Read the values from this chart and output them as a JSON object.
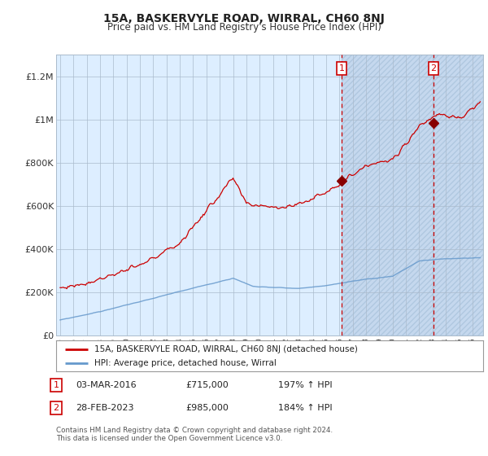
{
  "title": "15A, BASKERVYLE ROAD, WIRRAL, CH60 8NJ",
  "subtitle": "Price paid vs. HM Land Registry's House Price Index (HPI)",
  "legend_line1": "15A, BASKERVYLE ROAD, WIRRAL, CH60 8NJ (detached house)",
  "legend_line2": "HPI: Average price, detached house, Wirral",
  "annotation1_date": "03-MAR-2016",
  "annotation1_price": 715000,
  "annotation1_price_str": "£715,000",
  "annotation1_pct": "197% ↑ HPI",
  "annotation2_date": "28-FEB-2023",
  "annotation2_price": 985000,
  "annotation2_price_str": "£985,000",
  "annotation2_pct": "184% ↑ HPI",
  "footnote_line1": "Contains HM Land Registry data © Crown copyright and database right 2024.",
  "footnote_line2": "This data is licensed under the Open Government Licence v3.0.",
  "red_line_color": "#cc0000",
  "blue_line_color": "#6699cc",
  "chart_bg_color": "#ddeeff",
  "hatch_region_color": "#c8ddf0",
  "grid_color": "#aabbcc",
  "ann_box_color": "#cc0000",
  "dash_color": "#cc0000",
  "marker_color": "#880000",
  "ylim": [
    0,
    1300000
  ],
  "xlim_start": 1994.7,
  "xlim_end": 2026.8,
  "ann1_x": 2016.17,
  "ann2_x": 2023.08
}
